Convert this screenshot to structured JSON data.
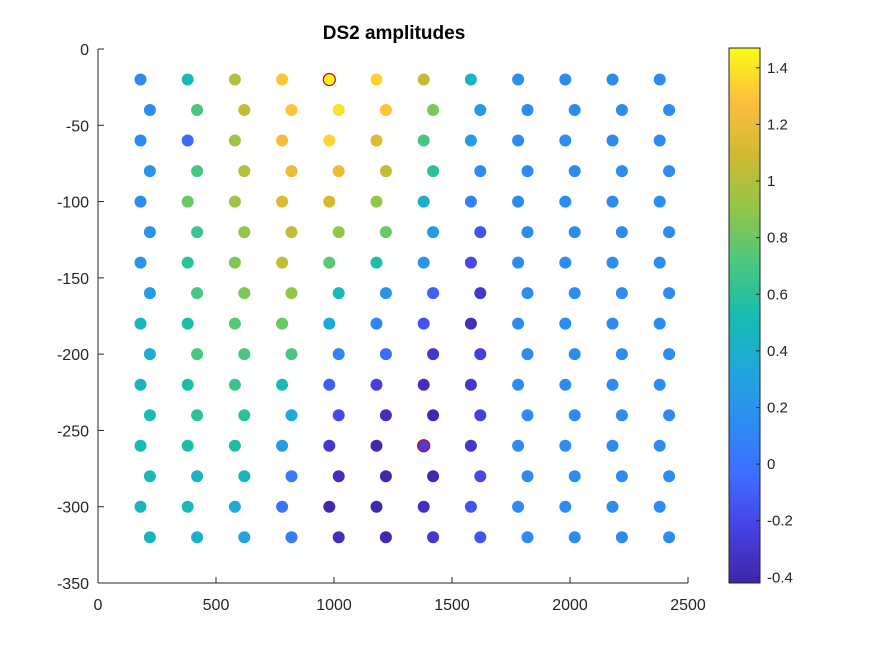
{
  "chart_data": {
    "type": "scatter",
    "title": "DS2 amplitudes",
    "xlabel": "",
    "ylabel": "",
    "xlim": [
      0,
      2500
    ],
    "ylim": [
      -350,
      0
    ],
    "x_ticks": [
      0,
      500,
      1000,
      1500,
      2000,
      2500
    ],
    "y_ticks": [
      0,
      -50,
      -100,
      -150,
      -200,
      -250,
      -300,
      -350
    ],
    "grid": false,
    "colormap": "parula",
    "color_range": [
      -0.42,
      1.47
    ],
    "colorbar_ticks": [
      1.4,
      1.2,
      1,
      0.8,
      0.6,
      0.4,
      0.2,
      0,
      -0.2,
      -0.4
    ],
    "colorbar_tick_labels": [
      "1.4",
      "1.2",
      "1",
      "0.8",
      "0.6",
      "0.4",
      "0.2",
      "0",
      "-0.2",
      "-0.4"
    ],
    "highlight_color": "#d00000",
    "highlighted_points": [
      [
        980,
        -20
      ],
      [
        1380,
        -260
      ]
    ],
    "row_y": [
      -20,
      -40,
      -60,
      -80,
      -100,
      -120,
      -140,
      -160,
      -180,
      -200,
      -220,
      -240,
      -260,
      -280,
      -300,
      -320
    ],
    "row_x_odd": [
      180,
      380,
      580,
      780,
      980,
      1180,
      1380,
      1580,
      1780,
      1980,
      2180,
      2380
    ],
    "row_x_even": [
      220,
      420,
      620,
      820,
      1020,
      1220,
      1420,
      1620,
      1820,
      2020,
      2220,
      2420
    ],
    "amplitudes": [
      [
        0.15,
        0.5,
        1.0,
        1.3,
        1.45,
        1.35,
        1.05,
        0.45,
        0.15,
        0.15,
        0.15,
        0.15
      ],
      [
        0.15,
        0.7,
        1.05,
        1.3,
        1.4,
        1.3,
        0.85,
        0.25,
        0.15,
        0.15,
        0.15,
        0.15
      ],
      [
        0.15,
        -0.05,
        0.95,
        1.25,
        1.35,
        1.15,
        0.7,
        0.25,
        0.15,
        0.15,
        0.15,
        0.15
      ],
      [
        0.2,
        0.7,
        1.0,
        1.2,
        1.2,
        1.05,
        0.6,
        0.15,
        0.15,
        0.15,
        0.15,
        0.15
      ],
      [
        0.15,
        0.8,
        0.95,
        1.15,
        1.1,
        0.9,
        0.4,
        0.1,
        0.15,
        0.15,
        0.15,
        0.15
      ],
      [
        0.2,
        0.65,
        0.9,
        1.05,
        0.9,
        0.8,
        0.25,
        -0.15,
        0.15,
        0.15,
        0.15,
        0.15
      ],
      [
        0.2,
        0.6,
        0.85,
        1.05,
        0.75,
        0.55,
        0.2,
        -0.2,
        0.15,
        0.15,
        0.15,
        0.15
      ],
      [
        0.25,
        0.7,
        0.85,
        0.9,
        0.5,
        0.2,
        -0.1,
        -0.3,
        0.15,
        0.15,
        0.15,
        0.15
      ],
      [
        0.45,
        0.55,
        0.75,
        0.8,
        0.35,
        0.1,
        -0.15,
        -0.35,
        0.15,
        0.15,
        0.15,
        0.15
      ],
      [
        0.4,
        0.7,
        0.7,
        0.7,
        0.1,
        -0.05,
        -0.3,
        -0.25,
        0.15,
        0.15,
        0.15,
        0.15
      ],
      [
        0.45,
        0.55,
        0.65,
        0.5,
        -0.1,
        -0.25,
        -0.35,
        -0.3,
        0.15,
        0.15,
        0.15,
        0.15
      ],
      [
        0.5,
        0.6,
        0.6,
        0.35,
        -0.2,
        -0.35,
        -0.4,
        -0.25,
        0.15,
        0.15,
        0.15,
        0.15
      ],
      [
        0.5,
        0.55,
        0.55,
        0.25,
        -0.3,
        -0.4,
        -0.25,
        -0.3,
        0.15,
        0.15,
        0.15,
        0.15
      ],
      [
        0.5,
        0.45,
        0.45,
        0.05,
        -0.35,
        -0.4,
        -0.4,
        -0.2,
        0.15,
        0.15,
        0.15,
        0.15
      ],
      [
        0.45,
        0.5,
        0.35,
        0.0,
        -0.4,
        -0.4,
        -0.35,
        -0.15,
        0.15,
        0.15,
        0.15,
        0.15
      ],
      [
        0.45,
        0.4,
        0.3,
        0.05,
        -0.35,
        -0.4,
        -0.3,
        -0.15,
        0.15,
        0.15,
        0.15,
        0.15
      ]
    ]
  }
}
